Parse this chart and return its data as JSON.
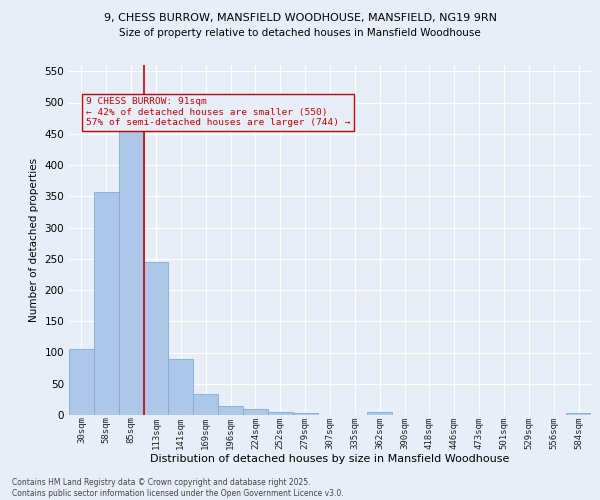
{
  "title1": "9, CHESS BURROW, MANSFIELD WOODHOUSE, MANSFIELD, NG19 9RN",
  "title2": "Size of property relative to detached houses in Mansfield Woodhouse",
  "xlabel": "Distribution of detached houses by size in Mansfield Woodhouse",
  "ylabel": "Number of detached properties",
  "footnote": "Contains HM Land Registry data © Crown copyright and database right 2025.\nContains public sector information licensed under the Open Government Licence v3.0.",
  "bar_labels": [
    "30sqm",
    "58sqm",
    "85sqm",
    "113sqm",
    "141sqm",
    "169sqm",
    "196sqm",
    "224sqm",
    "252sqm",
    "279sqm",
    "307sqm",
    "335sqm",
    "362sqm",
    "390sqm",
    "418sqm",
    "446sqm",
    "473sqm",
    "501sqm",
    "529sqm",
    "556sqm",
    "584sqm"
  ],
  "bar_values": [
    105,
    357,
    455,
    245,
    90,
    33,
    15,
    10,
    5,
    3,
    0,
    0,
    5,
    0,
    0,
    0,
    0,
    0,
    0,
    0,
    3
  ],
  "bar_color": "#aec6e8",
  "bar_edge_color": "#7aafd4",
  "bg_color": "#e8eef8",
  "grid_color": "#ffffff",
  "subject_line_color": "#cc0000",
  "annotation_line1": "9 CHESS BURROW: 91sqm",
  "annotation_line2": "← 42% of detached houses are smaller (550)",
  "annotation_line3": "57% of semi-detached houses are larger (744) →",
  "ylim": [
    0,
    560
  ],
  "yticks": [
    0,
    50,
    100,
    150,
    200,
    250,
    300,
    350,
    400,
    450,
    500,
    550
  ]
}
